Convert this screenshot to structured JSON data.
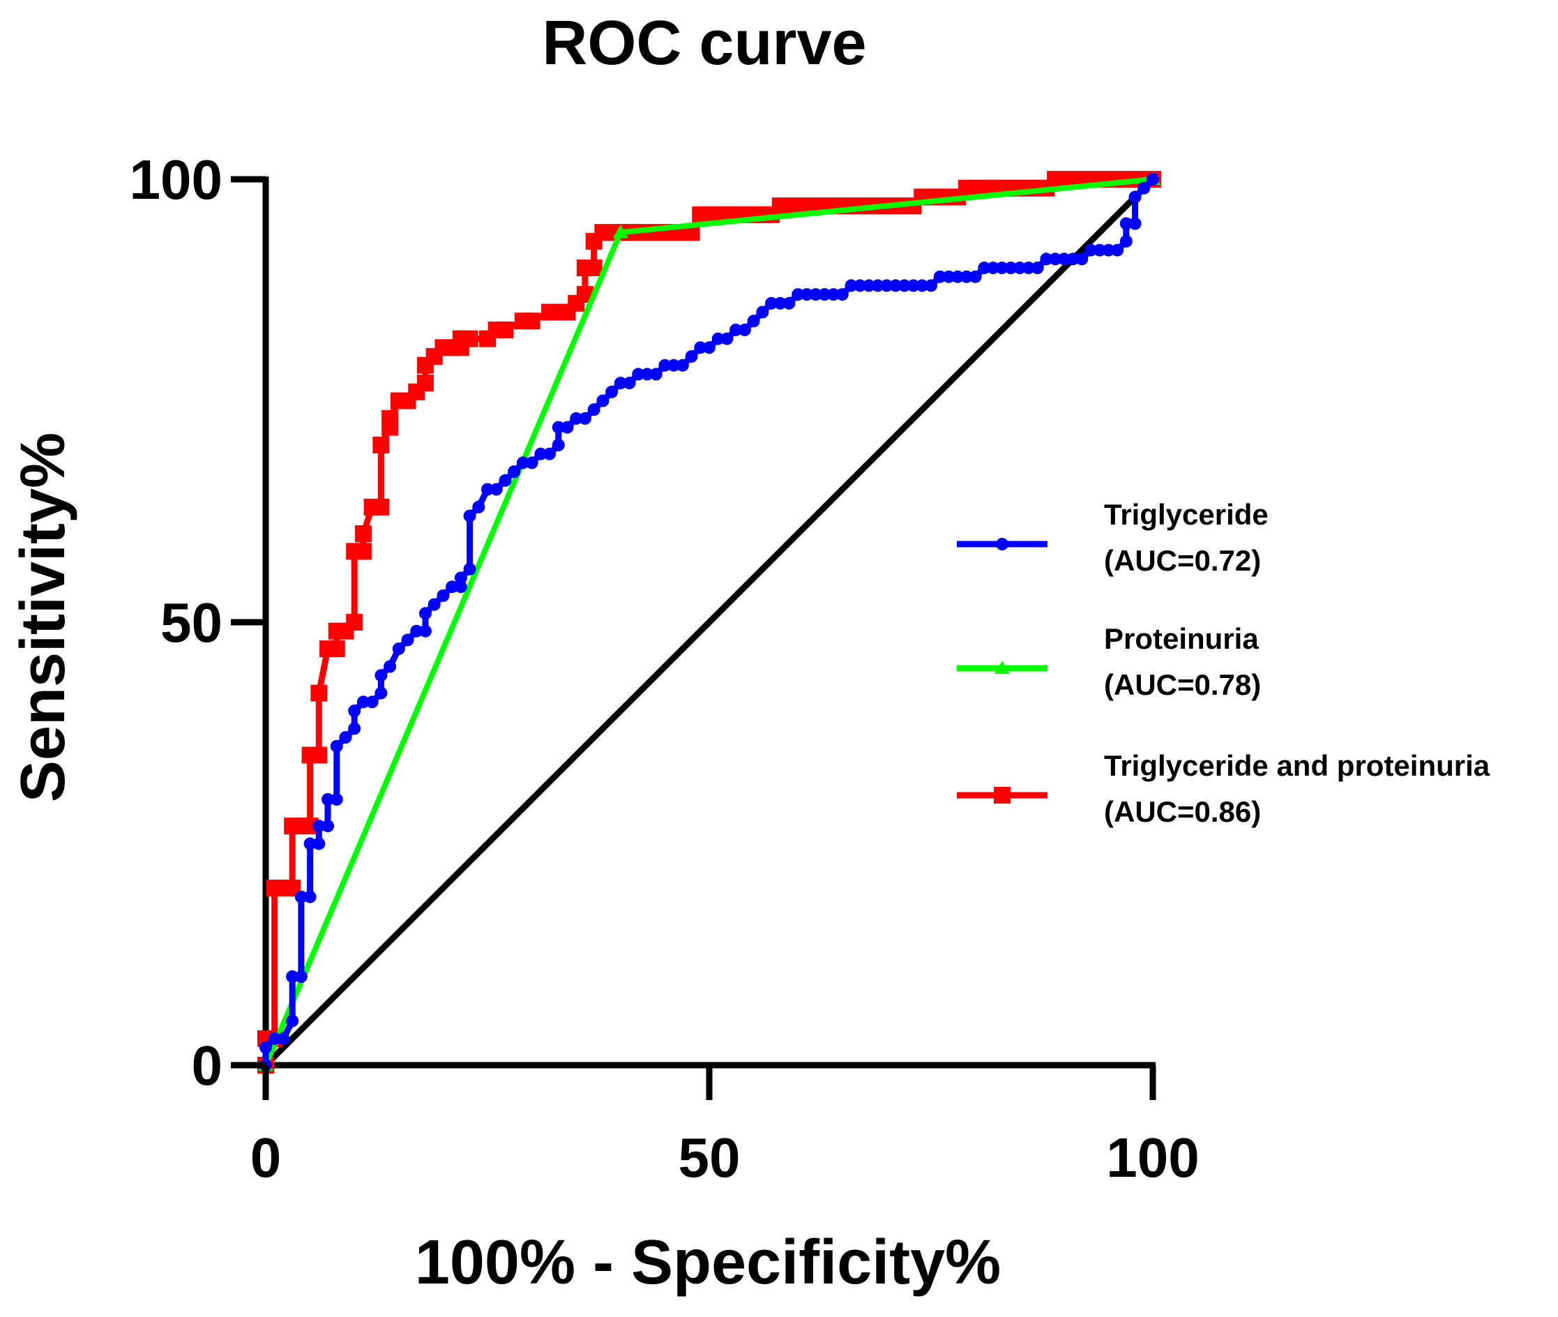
{
  "chart_data": {
    "type": "line",
    "title": "ROC curve",
    "xlabel": "100% - Specificity%",
    "ylabel": "Sensitivity%",
    "xlim": [
      0,
      100
    ],
    "ylim": [
      0,
      100
    ],
    "xticks": [
      0,
      50,
      100
    ],
    "yticks": [
      0,
      50,
      100
    ],
    "grid": false,
    "legend_position": "right",
    "colors": {
      "triglyceride": "#0000ff",
      "proteinuria": "#00ff00",
      "combined": "#ff0000",
      "reference": "#000000"
    },
    "series": [
      {
        "name": "Triglyceride",
        "auc_label": "(AUC=0.72)",
        "color": "#0000ff",
        "marker": "circle",
        "x": [
          0,
          0,
          1,
          2,
          3,
          3,
          4,
          4,
          5,
          5,
          6,
          6,
          7,
          7,
          8,
          8,
          9,
          10,
          10,
          11,
          12,
          13,
          13,
          14,
          15,
          16,
          17,
          18,
          18,
          19,
          20,
          21,
          22,
          22,
          23,
          23,
          24,
          25,
          26,
          27,
          28,
          29,
          30,
          31,
          32,
          33,
          33,
          34,
          35,
          36,
          37,
          38,
          39,
          40,
          41,
          42,
          43,
          44,
          45,
          46,
          47,
          48,
          49,
          50,
          51,
          52,
          53,
          54,
          55,
          56,
          57,
          58,
          59,
          60,
          61,
          62,
          63,
          64,
          65,
          66,
          67,
          68,
          69,
          70,
          71,
          72,
          73,
          74,
          75,
          76,
          77,
          78,
          79,
          80,
          81,
          82,
          83,
          84,
          85,
          86,
          87,
          88,
          89,
          90,
          91,
          92,
          93,
          94,
          95,
          96,
          97,
          97,
          98,
          98,
          99,
          100
        ],
        "y": [
          0,
          2,
          3,
          3,
          5,
          10,
          10,
          19,
          19,
          25,
          25,
          27,
          27,
          30,
          30,
          36,
          37,
          38,
          40,
          41,
          41,
          42,
          44,
          45,
          47,
          48,
          49,
          49,
          51,
          52,
          53,
          54,
          54,
          55,
          56,
          62,
          63,
          65,
          65,
          66,
          67,
          68,
          68,
          69,
          69,
          70,
          72,
          72,
          73,
          73,
          74,
          75,
          76,
          77,
          77,
          78,
          78,
          78,
          79,
          79,
          79,
          80,
          81,
          81,
          82,
          82,
          83,
          83,
          84,
          85,
          86,
          86,
          86,
          87,
          87,
          87,
          87,
          87,
          87,
          88,
          88,
          88,
          88,
          88,
          88,
          88,
          88,
          88,
          88,
          89,
          89,
          89,
          89,
          89,
          90,
          90,
          90,
          90,
          90,
          90,
          90,
          91,
          91,
          91,
          91,
          91,
          92,
          92,
          92,
          92,
          93,
          95,
          95,
          98,
          99,
          100
        ]
      },
      {
        "name": "Proteinuria",
        "auc_label": "(AUC=0.78)",
        "color": "#00ff00",
        "marker": "triangle",
        "x": [
          0,
          40,
          100
        ],
        "y": [
          0,
          94,
          100
        ]
      },
      {
        "name": "Triglyceride and proteinuria",
        "auc_label": "(AUC=0.86)",
        "color": "#ff0000",
        "marker": "square",
        "x": [
          0,
          0,
          1,
          1,
          2,
          3,
          3,
          4,
          5,
          5,
          6,
          6,
          7,
          8,
          8,
          9,
          10,
          10,
          11,
          11,
          12,
          13,
          13,
          14,
          14,
          15,
          16,
          17,
          18,
          18,
          19,
          20,
          21,
          22,
          22,
          23,
          25,
          26,
          27,
          29,
          30,
          32,
          33,
          34,
          35,
          36,
          36,
          37,
          37,
          38,
          39,
          40,
          41,
          42,
          43,
          44,
          45,
          46,
          47,
          48,
          49,
          50,
          51,
          52,
          53,
          54,
          55,
          56,
          57,
          58,
          59,
          60,
          61,
          62,
          63,
          64,
          65,
          66,
          67,
          68,
          69,
          70,
          71,
          72,
          73,
          74,
          75,
          76,
          77,
          78,
          79,
          80,
          81,
          82,
          83,
          84,
          85,
          86,
          87,
          88,
          89,
          90,
          91,
          92,
          93,
          94,
          95,
          96,
          97,
          98,
          99,
          100
        ],
        "y": [
          0,
          3,
          3,
          20,
          20,
          20,
          27,
          27,
          27,
          35,
          35,
          42,
          47,
          47,
          49,
          49,
          50,
          58,
          58,
          60,
          63,
          63,
          70,
          72,
          73,
          75,
          75,
          76,
          77,
          79,
          80,
          81,
          81,
          81,
          82,
          82,
          82,
          83,
          83,
          84,
          84,
          85,
          85,
          85,
          86,
          87,
          90,
          90,
          93,
          94,
          94,
          94,
          94,
          94,
          94,
          94,
          94,
          94,
          94,
          94,
          96,
          96,
          96,
          96,
          96,
          96,
          96,
          96,
          96,
          97,
          97,
          97,
          97,
          97,
          97,
          97,
          97,
          97,
          97,
          97,
          97,
          97,
          97,
          97,
          97,
          98,
          98,
          98,
          98,
          98,
          99,
          99,
          99,
          99,
          99,
          99,
          99,
          99,
          99,
          99,
          100,
          100,
          100,
          100,
          100,
          100,
          100,
          100,
          100,
          100,
          100,
          100
        ]
      },
      {
        "name": "Reference line",
        "color": "#000000",
        "marker": "none",
        "x": [
          0,
          100
        ],
        "y": [
          0,
          100
        ]
      }
    ]
  }
}
